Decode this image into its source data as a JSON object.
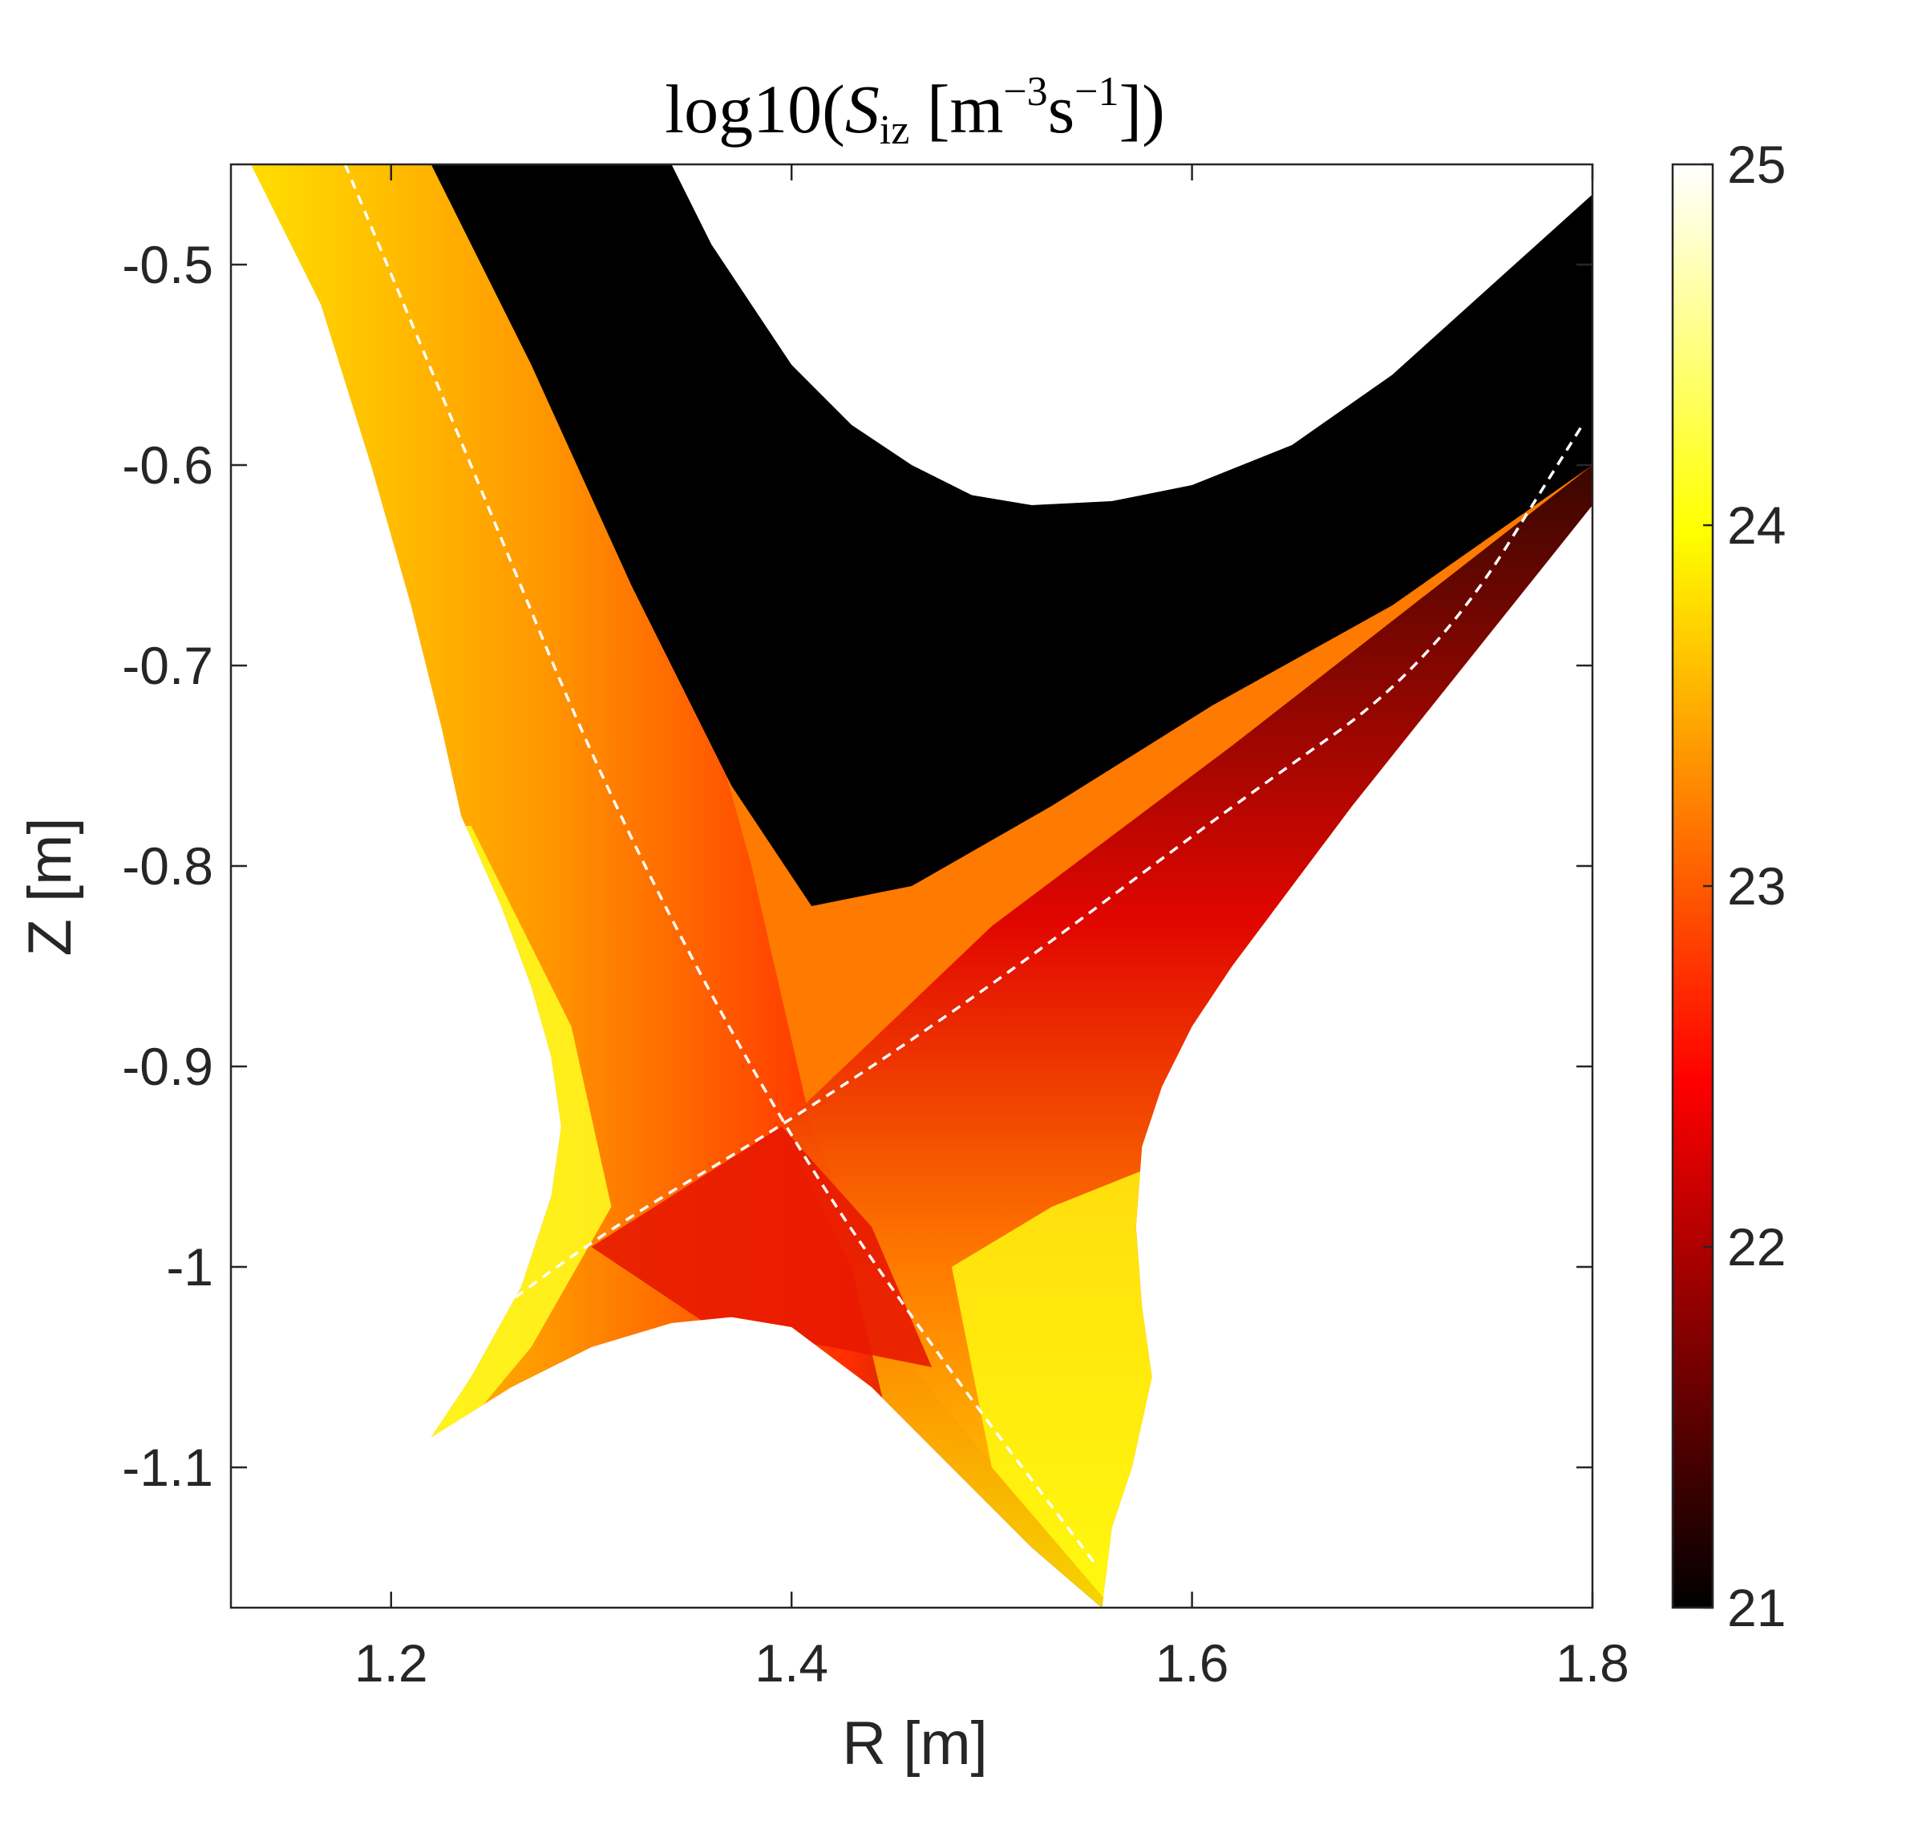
{
  "chart_data": {
    "type": "heatmap",
    "title": {
      "prefix": "log10(",
      "symbol": "S",
      "subscript": "iz",
      "bracket_open": " [m",
      "sup1": "−3",
      "mid": "s",
      "sup2": "−1",
      "suffix": "])"
    },
    "xlabel": "R [m]",
    "ylabel": "Z [m]",
    "xlim": [
      1.12,
      1.8
    ],
    "ylim": [
      -1.17,
      -0.45
    ],
    "xticks": [
      {
        "value": 1.2,
        "label": "1.2"
      },
      {
        "value": 1.4,
        "label": "1.4"
      },
      {
        "value": 1.6,
        "label": "1.6"
      },
      {
        "value": 1.8,
        "label": "1.8"
      }
    ],
    "yticks": [
      {
        "value": -0.5,
        "label": "-0.5"
      },
      {
        "value": -0.6,
        "label": "-0.6"
      },
      {
        "value": -0.7,
        "label": "-0.7"
      },
      {
        "value": -0.8,
        "label": "-0.8"
      },
      {
        "value": -0.9,
        "label": "-0.9"
      },
      {
        "value": -1.0,
        "label": "-1"
      },
      {
        "value": -1.1,
        "label": "-1.1"
      }
    ],
    "colorbar": {
      "colormap": "hot",
      "range": [
        21,
        25
      ],
      "ticks": [
        {
          "value": 21,
          "label": "21"
        },
        {
          "value": 22,
          "label": "22"
        },
        {
          "value": 23,
          "label": "23"
        },
        {
          "value": 24,
          "label": "24"
        },
        {
          "value": 25,
          "label": "25"
        }
      ]
    },
    "x_point": {
      "R": 1.395,
      "Z": -0.93
    },
    "domain_boundary": [
      [
        1.13,
        -0.45
      ],
      [
        1.165,
        -0.52
      ],
      [
        1.19,
        -0.6
      ],
      [
        1.21,
        -0.67
      ],
      [
        1.225,
        -0.73
      ],
      [
        1.235,
        -0.775
      ],
      [
        1.255,
        -0.82
      ],
      [
        1.27,
        -0.86
      ],
      [
        1.28,
        -0.895
      ],
      [
        1.285,
        -0.93
      ],
      [
        1.28,
        -0.965
      ],
      [
        1.265,
        -1.01
      ],
      [
        1.24,
        -1.055
      ],
      [
        1.22,
        -1.085
      ],
      [
        1.26,
        -1.06
      ],
      [
        1.3,
        -1.04
      ],
      [
        1.34,
        -1.028
      ],
      [
        1.37,
        -1.025
      ],
      [
        1.4,
        -1.03
      ],
      [
        1.44,
        -1.06
      ],
      [
        1.48,
        -1.1
      ],
      [
        1.52,
        -1.14
      ],
      [
        1.555,
        -1.17
      ],
      [
        1.56,
        -1.13
      ],
      [
        1.57,
        -1.1
      ],
      [
        1.58,
        -1.055
      ],
      [
        1.575,
        -1.02
      ],
      [
        1.572,
        -0.98
      ],
      [
        1.575,
        -0.94
      ],
      [
        1.585,
        -0.91
      ],
      [
        1.6,
        -0.88
      ],
      [
        1.62,
        -0.85
      ],
      [
        1.65,
        -0.81
      ],
      [
        1.68,
        -0.77
      ],
      [
        1.72,
        -0.72
      ],
      [
        1.76,
        -0.67
      ],
      [
        1.8,
        -0.62
      ],
      [
        1.8,
        -0.465
      ],
      [
        1.75,
        -0.51
      ],
      [
        1.7,
        -0.555
      ],
      [
        1.65,
        -0.59
      ],
      [
        1.6,
        -0.61
      ],
      [
        1.56,
        -0.618
      ],
      [
        1.52,
        -0.62
      ],
      [
        1.49,
        -0.615
      ],
      [
        1.46,
        -0.6
      ],
      [
        1.43,
        -0.58
      ],
      [
        1.4,
        -0.55
      ],
      [
        1.38,
        -0.52
      ],
      [
        1.36,
        -0.49
      ],
      [
        1.34,
        -0.45
      ]
    ],
    "separatrix_legs": [
      {
        "points": [
          [
            1.177,
            -0.45
          ],
          [
            1.24,
            -0.6
          ],
          [
            1.31,
            -0.77
          ],
          [
            1.395,
            -0.93
          ],
          [
            1.47,
            -1.04
          ],
          [
            1.553,
            -1.15
          ]
        ]
      },
      {
        "points": [
          [
            1.235,
            -1.035
          ],
          [
            1.31,
            -0.98
          ],
          [
            1.395,
            -0.93
          ],
          [
            1.5,
            -0.86
          ],
          [
            1.62,
            -0.77
          ],
          [
            1.72,
            -0.7
          ],
          [
            1.795,
            -0.58
          ]
        ]
      }
    ]
  }
}
